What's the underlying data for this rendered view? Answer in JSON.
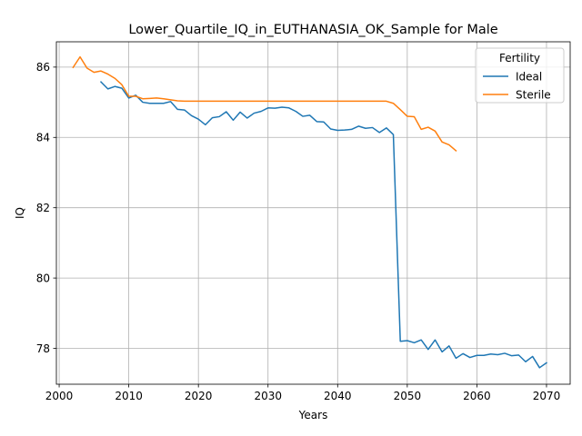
{
  "chart_data": {
    "type": "line",
    "title": "Lower_Quartile_IQ_in_EUTHANASIA_OK_Sample for Male",
    "xlabel": "Years",
    "ylabel": "IQ",
    "xlim": [
      1999.6,
      2073.4
    ],
    "ylim": [
      76.98,
      86.72
    ],
    "xticks": [
      2000,
      2010,
      2020,
      2030,
      2040,
      2050,
      2060,
      2070
    ],
    "yticks": [
      78,
      80,
      82,
      84,
      86
    ],
    "grid": true,
    "legend": {
      "title": "Fertility",
      "position": "top-right"
    },
    "series": [
      {
        "name": "Ideal",
        "color": "#1f77b4",
        "points": [
          [
            2006,
            85.58
          ],
          [
            2007,
            85.38
          ],
          [
            2008,
            85.45
          ],
          [
            2009,
            85.4
          ],
          [
            2010,
            85.12
          ],
          [
            2011,
            85.2
          ],
          [
            2012,
            85.0
          ],
          [
            2013,
            84.97
          ],
          [
            2014,
            84.97
          ],
          [
            2015,
            84.97
          ],
          [
            2016,
            85.02
          ],
          [
            2017,
            84.8
          ],
          [
            2018,
            84.78
          ],
          [
            2019,
            84.62
          ],
          [
            2020,
            84.52
          ],
          [
            2021,
            84.36
          ],
          [
            2022,
            84.56
          ],
          [
            2023,
            84.59
          ],
          [
            2024,
            84.73
          ],
          [
            2025,
            84.49
          ],
          [
            2026,
            84.72
          ],
          [
            2027,
            84.55
          ],
          [
            2028,
            84.69
          ],
          [
            2029,
            84.74
          ],
          [
            2030,
            84.84
          ],
          [
            2031,
            84.83
          ],
          [
            2032,
            84.86
          ],
          [
            2033,
            84.84
          ],
          [
            2034,
            84.74
          ],
          [
            2035,
            84.6
          ],
          [
            2036,
            84.63
          ],
          [
            2037,
            84.45
          ],
          [
            2038,
            84.44
          ],
          [
            2039,
            84.24
          ],
          [
            2040,
            84.2
          ],
          [
            2041,
            84.21
          ],
          [
            2042,
            84.23
          ],
          [
            2043,
            84.32
          ],
          [
            2044,
            84.26
          ],
          [
            2045,
            84.28
          ],
          [
            2046,
            84.14
          ],
          [
            2047,
            84.27
          ],
          [
            2048,
            84.08
          ],
          [
            2049,
            78.2
          ],
          [
            2050,
            78.22
          ],
          [
            2051,
            78.16
          ],
          [
            2052,
            78.24
          ],
          [
            2053,
            77.97
          ],
          [
            2054,
            78.24
          ],
          [
            2055,
            77.9
          ],
          [
            2056,
            78.07
          ],
          [
            2057,
            77.72
          ],
          [
            2058,
            77.85
          ],
          [
            2059,
            77.74
          ],
          [
            2060,
            77.8
          ],
          [
            2061,
            77.8
          ],
          [
            2062,
            77.84
          ],
          [
            2063,
            77.82
          ],
          [
            2064,
            77.86
          ],
          [
            2065,
            77.79
          ],
          [
            2066,
            77.81
          ],
          [
            2067,
            77.62
          ],
          [
            2068,
            77.77
          ],
          [
            2069,
            77.45
          ],
          [
            2070,
            77.59
          ]
        ]
      },
      {
        "name": "Sterile",
        "color": "#ff7f0e",
        "points": [
          [
            2002,
            85.99
          ],
          [
            2003,
            86.29
          ],
          [
            2004,
            85.97
          ],
          [
            2005,
            85.85
          ],
          [
            2006,
            85.89
          ],
          [
            2007,
            85.8
          ],
          [
            2008,
            85.68
          ],
          [
            2009,
            85.5
          ],
          [
            2010,
            85.17
          ],
          [
            2011,
            85.17
          ],
          [
            2012,
            85.1
          ],
          [
            2013,
            85.11
          ],
          [
            2014,
            85.12
          ],
          [
            2015,
            85.1
          ],
          [
            2016,
            85.07
          ],
          [
            2017,
            85.04
          ],
          [
            2018,
            85.03
          ],
          [
            2019,
            85.03
          ],
          [
            2020,
            85.03
          ],
          [
            2021,
            85.03
          ],
          [
            2022,
            85.03
          ],
          [
            2023,
            85.03
          ],
          [
            2024,
            85.03
          ],
          [
            2025,
            85.03
          ],
          [
            2026,
            85.03
          ],
          [
            2027,
            85.03
          ],
          [
            2028,
            85.03
          ],
          [
            2029,
            85.03
          ],
          [
            2030,
            85.03
          ],
          [
            2031,
            85.03
          ],
          [
            2032,
            85.03
          ],
          [
            2033,
            85.03
          ],
          [
            2034,
            85.03
          ],
          [
            2035,
            85.03
          ],
          [
            2036,
            85.03
          ],
          [
            2037,
            85.03
          ],
          [
            2038,
            85.03
          ],
          [
            2039,
            85.03
          ],
          [
            2040,
            85.03
          ],
          [
            2041,
            85.03
          ],
          [
            2042,
            85.03
          ],
          [
            2043,
            85.03
          ],
          [
            2044,
            85.03
          ],
          [
            2045,
            85.03
          ],
          [
            2046,
            85.03
          ],
          [
            2047,
            85.03
          ],
          [
            2048,
            84.97
          ],
          [
            2049,
            84.79
          ],
          [
            2050,
            84.6
          ],
          [
            2051,
            84.59
          ],
          [
            2052,
            84.23
          ],
          [
            2053,
            84.29
          ],
          [
            2054,
            84.18
          ],
          [
            2055,
            83.87
          ],
          [
            2056,
            83.79
          ],
          [
            2057,
            83.62
          ]
        ]
      }
    ]
  }
}
